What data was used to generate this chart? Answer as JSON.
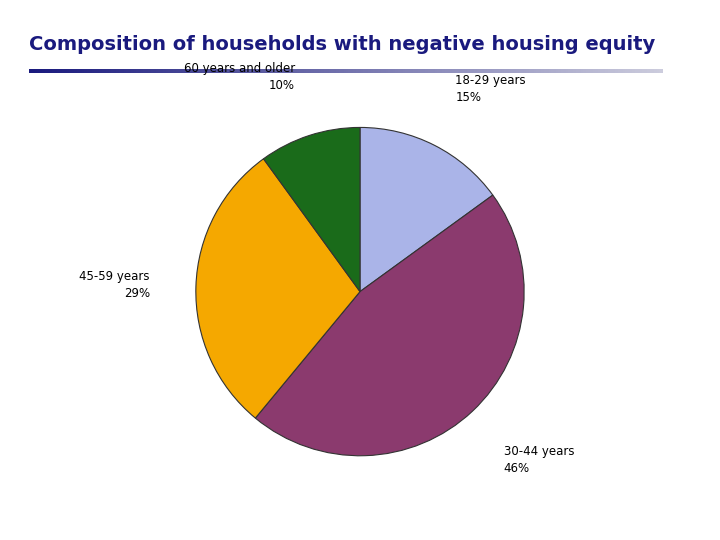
{
  "title": "Composition of households with negative housing equity",
  "title_color": "#1a1a7e",
  "title_fontsize": 14,
  "background_color": "#ffffff",
  "left_bar_color": "#3a3a8a",
  "slices": [
    {
      "label": "18-29 years\n15%",
      "value": 15,
      "color": "#aab4e8"
    },
    {
      "label": "30-44 years\n46%",
      "value": 46,
      "color": "#8b3a6e"
    },
    {
      "label": "45-59 years\n29%",
      "value": 29,
      "color": "#f5a800"
    },
    {
      "label": "60 years and older\n10%",
      "value": 10,
      "color": "#1a6b1a"
    }
  ],
  "line_color_dark": "#1a1a7e",
  "line_color_light": "#ccccdd"
}
